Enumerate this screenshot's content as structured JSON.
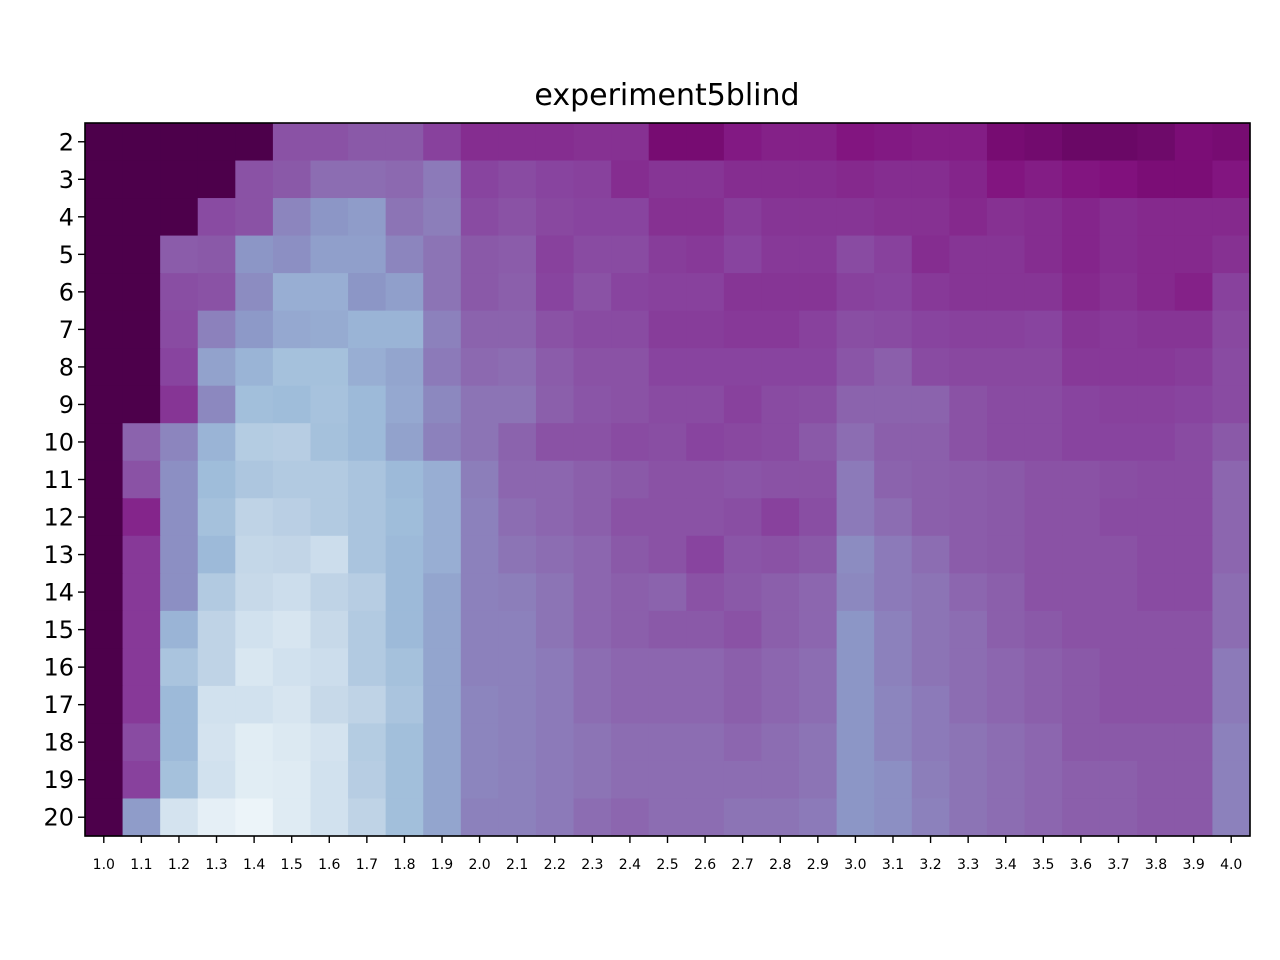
{
  "chart_data": {
    "type": "heatmap",
    "title": "experiment5blind",
    "x_categories": [
      "1.0",
      "1.1",
      "1.2",
      "1.3",
      "1.4",
      "1.5",
      "1.6",
      "1.7",
      "1.8",
      "1.9",
      "2.0",
      "2.1",
      "2.2",
      "2.3",
      "2.4",
      "2.5",
      "2.6",
      "2.7",
      "2.8",
      "2.9",
      "3.0",
      "3.1",
      "3.2",
      "3.3",
      "3.4",
      "3.5",
      "3.6",
      "3.7",
      "3.8",
      "3.9",
      "4.0"
    ],
    "y_categories": [
      "2",
      "3",
      "4",
      "5",
      "6",
      "7",
      "8",
      "9",
      "10",
      "11",
      "12",
      "13",
      "14",
      "15",
      "16",
      "17",
      "18",
      "19",
      "20"
    ],
    "colormap": "BuPu",
    "value_range": [
      0,
      1
    ],
    "grid": false,
    "colorbar": false,
    "values": [
      [
        1.0,
        1.0,
        1.0,
        1.0,
        1.0,
        0.7,
        0.7,
        0.68,
        0.68,
        0.75,
        0.8,
        0.8,
        0.8,
        0.79,
        0.79,
        0.9,
        0.9,
        0.85,
        0.83,
        0.83,
        0.86,
        0.85,
        0.84,
        0.84,
        0.9,
        0.91,
        0.93,
        0.93,
        0.92,
        0.89,
        0.9
      ],
      [
        1.0,
        1.0,
        1.0,
        1.0,
        0.7,
        0.68,
        0.62,
        0.62,
        0.63,
        0.58,
        0.74,
        0.72,
        0.74,
        0.75,
        0.8,
        0.78,
        0.78,
        0.8,
        0.8,
        0.8,
        0.81,
        0.8,
        0.8,
        0.82,
        0.86,
        0.84,
        0.86,
        0.87,
        0.89,
        0.89,
        0.86
      ],
      [
        1.0,
        1.0,
        1.0,
        0.72,
        0.7,
        0.55,
        0.5,
        0.48,
        0.6,
        0.57,
        0.72,
        0.7,
        0.73,
        0.74,
        0.74,
        0.79,
        0.79,
        0.76,
        0.78,
        0.78,
        0.78,
        0.79,
        0.79,
        0.81,
        0.79,
        0.8,
        0.82,
        0.8,
        0.81,
        0.81,
        0.81
      ],
      [
        1.0,
        1.0,
        0.67,
        0.68,
        0.5,
        0.52,
        0.47,
        0.47,
        0.55,
        0.6,
        0.68,
        0.67,
        0.75,
        0.72,
        0.72,
        0.76,
        0.77,
        0.74,
        0.77,
        0.77,
        0.72,
        0.75,
        0.8,
        0.78,
        0.78,
        0.8,
        0.82,
        0.8,
        0.81,
        0.81,
        0.79
      ],
      [
        1.0,
        1.0,
        0.71,
        0.7,
        0.53,
        0.42,
        0.42,
        0.5,
        0.47,
        0.6,
        0.68,
        0.66,
        0.74,
        0.7,
        0.74,
        0.75,
        0.75,
        0.78,
        0.78,
        0.78,
        0.75,
        0.74,
        0.77,
        0.78,
        0.78,
        0.78,
        0.81,
        0.79,
        0.81,
        0.83,
        0.75
      ],
      [
        1.0,
        1.0,
        0.72,
        0.56,
        0.49,
        0.44,
        0.43,
        0.4,
        0.4,
        0.56,
        0.65,
        0.65,
        0.7,
        0.72,
        0.72,
        0.76,
        0.76,
        0.77,
        0.77,
        0.75,
        0.71,
        0.72,
        0.74,
        0.75,
        0.75,
        0.74,
        0.78,
        0.77,
        0.78,
        0.78,
        0.73
      ],
      [
        1.0,
        1.0,
        0.74,
        0.46,
        0.4,
        0.35,
        0.35,
        0.42,
        0.45,
        0.58,
        0.63,
        0.62,
        0.67,
        0.7,
        0.7,
        0.74,
        0.74,
        0.74,
        0.74,
        0.74,
        0.69,
        0.66,
        0.72,
        0.73,
        0.73,
        0.73,
        0.77,
        0.77,
        0.77,
        0.76,
        0.72
      ],
      [
        1.0,
        1.0,
        0.78,
        0.54,
        0.36,
        0.37,
        0.34,
        0.38,
        0.44,
        0.54,
        0.6,
        0.6,
        0.66,
        0.69,
        0.7,
        0.72,
        0.72,
        0.75,
        0.72,
        0.71,
        0.65,
        0.65,
        0.65,
        0.7,
        0.72,
        0.72,
        0.74,
        0.75,
        0.75,
        0.74,
        0.72
      ],
      [
        1.0,
        0.65,
        0.55,
        0.4,
        0.29,
        0.28,
        0.35,
        0.38,
        0.46,
        0.56,
        0.6,
        0.65,
        0.7,
        0.7,
        0.72,
        0.71,
        0.74,
        0.73,
        0.72,
        0.68,
        0.62,
        0.66,
        0.66,
        0.7,
        0.72,
        0.72,
        0.74,
        0.74,
        0.74,
        0.72,
        0.68
      ],
      [
        1.0,
        0.7,
        0.52,
        0.37,
        0.32,
        0.3,
        0.3,
        0.33,
        0.38,
        0.42,
        0.57,
        0.64,
        0.64,
        0.66,
        0.68,
        0.7,
        0.7,
        0.69,
        0.7,
        0.7,
        0.58,
        0.65,
        0.66,
        0.67,
        0.68,
        0.7,
        0.7,
        0.71,
        0.72,
        0.72,
        0.64
      ],
      [
        1.0,
        0.82,
        0.52,
        0.35,
        0.25,
        0.27,
        0.3,
        0.33,
        0.37,
        0.42,
        0.56,
        0.62,
        0.64,
        0.66,
        0.7,
        0.7,
        0.7,
        0.71,
        0.75,
        0.71,
        0.58,
        0.62,
        0.66,
        0.67,
        0.68,
        0.7,
        0.7,
        0.72,
        0.72,
        0.72,
        0.64
      ],
      [
        1.0,
        0.77,
        0.52,
        0.38,
        0.23,
        0.24,
        0.2,
        0.33,
        0.38,
        0.42,
        0.56,
        0.6,
        0.62,
        0.64,
        0.68,
        0.7,
        0.74,
        0.69,
        0.7,
        0.68,
        0.53,
        0.58,
        0.62,
        0.67,
        0.68,
        0.7,
        0.7,
        0.7,
        0.72,
        0.72,
        0.64
      ],
      [
        1.0,
        0.77,
        0.52,
        0.3,
        0.22,
        0.2,
        0.25,
        0.28,
        0.38,
        0.45,
        0.56,
        0.57,
        0.6,
        0.64,
        0.66,
        0.65,
        0.7,
        0.68,
        0.66,
        0.64,
        0.54,
        0.58,
        0.6,
        0.64,
        0.66,
        0.7,
        0.7,
        0.7,
        0.72,
        0.72,
        0.62
      ],
      [
        1.0,
        0.77,
        0.4,
        0.25,
        0.18,
        0.16,
        0.22,
        0.3,
        0.38,
        0.45,
        0.56,
        0.56,
        0.6,
        0.64,
        0.66,
        0.68,
        0.68,
        0.7,
        0.66,
        0.64,
        0.5,
        0.56,
        0.6,
        0.62,
        0.66,
        0.68,
        0.7,
        0.7,
        0.7,
        0.7,
        0.62
      ],
      [
        1.0,
        0.77,
        0.33,
        0.25,
        0.15,
        0.18,
        0.2,
        0.3,
        0.35,
        0.45,
        0.56,
        0.56,
        0.58,
        0.62,
        0.64,
        0.64,
        0.64,
        0.66,
        0.64,
        0.62,
        0.5,
        0.56,
        0.6,
        0.62,
        0.64,
        0.66,
        0.68,
        0.7,
        0.7,
        0.7,
        0.58
      ],
      [
        1.0,
        0.77,
        0.38,
        0.18,
        0.18,
        0.16,
        0.22,
        0.25,
        0.33,
        0.45,
        0.55,
        0.56,
        0.58,
        0.62,
        0.64,
        0.64,
        0.64,
        0.66,
        0.64,
        0.62,
        0.5,
        0.55,
        0.58,
        0.62,
        0.64,
        0.66,
        0.68,
        0.7,
        0.7,
        0.7,
        0.58
      ],
      [
        1.0,
        0.72,
        0.38,
        0.17,
        0.12,
        0.14,
        0.17,
        0.29,
        0.36,
        0.45,
        0.55,
        0.56,
        0.58,
        0.6,
        0.62,
        0.62,
        0.62,
        0.64,
        0.62,
        0.6,
        0.5,
        0.55,
        0.58,
        0.6,
        0.62,
        0.64,
        0.68,
        0.68,
        0.68,
        0.68,
        0.56
      ],
      [
        1.0,
        0.75,
        0.35,
        0.18,
        0.12,
        0.13,
        0.18,
        0.28,
        0.36,
        0.45,
        0.55,
        0.56,
        0.58,
        0.6,
        0.62,
        0.62,
        0.62,
        0.62,
        0.62,
        0.6,
        0.5,
        0.52,
        0.57,
        0.6,
        0.62,
        0.64,
        0.66,
        0.66,
        0.68,
        0.68,
        0.56
      ],
      [
        1.0,
        0.48,
        0.17,
        0.1,
        0.06,
        0.13,
        0.18,
        0.25,
        0.36,
        0.45,
        0.56,
        0.56,
        0.58,
        0.62,
        0.64,
        0.62,
        0.62,
        0.6,
        0.6,
        0.58,
        0.5,
        0.52,
        0.56,
        0.6,
        0.62,
        0.64,
        0.66,
        0.66,
        0.68,
        0.68,
        0.56
      ]
    ]
  }
}
